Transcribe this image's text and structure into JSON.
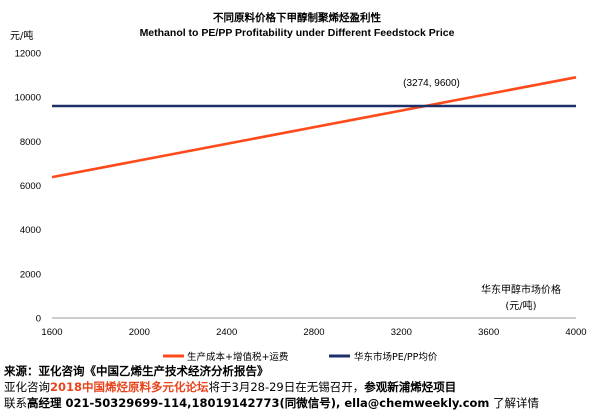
{
  "chart_data": {
    "type": "line",
    "title": "不同原料价格下甲醇制聚烯烃盈利性",
    "subtitle": "Methanol to PE/PP Profitability under Different Feedstock Price",
    "ylabel": "元/吨",
    "xlabel": "华东甲醇市场价格",
    "xlabel_unit": "(元/吨)",
    "xlim": [
      1600,
      4000
    ],
    "ylim": [
      0,
      12000
    ],
    "x_ticks": [
      "1600",
      "2000",
      "2400",
      "2800",
      "3200",
      "3600",
      "4000"
    ],
    "y_ticks": [
      "0",
      "2000",
      "4000",
      "6000",
      "8000",
      "10000",
      "12000"
    ],
    "grid": false,
    "legend_position": "bottom",
    "series": [
      {
        "name": "生产成本+增值税+运费",
        "color": "#ff4a1c",
        "points": [
          [
            1600,
            6380
          ],
          [
            4000,
            10900
          ]
        ]
      },
      {
        "name": "华东市场PE/PP均价",
        "color": "#1c2f68",
        "points": [
          [
            1600,
            9600
          ],
          [
            4000,
            9600
          ]
        ]
      }
    ],
    "annotation": {
      "text": "(3274,  9600)",
      "x": 3274,
      "y": 9600
    }
  },
  "footer": {
    "source_label": "来源：亚化咨询《中国乙烯生产技术经济分析报告》",
    "line2_a": "亚化咨询",
    "line2_b": "2018中国烯烃原料多元化论坛",
    "line2_c": "将于3月28-29日在无锡召开，",
    "line2_d": "参观新浦烯烃项目",
    "line3_a": "联系",
    "line3_b": "高经理 021-50329699-114,18019142773(同微信号), ella@chemweekly.com",
    "line3_c": " 了解详情"
  }
}
